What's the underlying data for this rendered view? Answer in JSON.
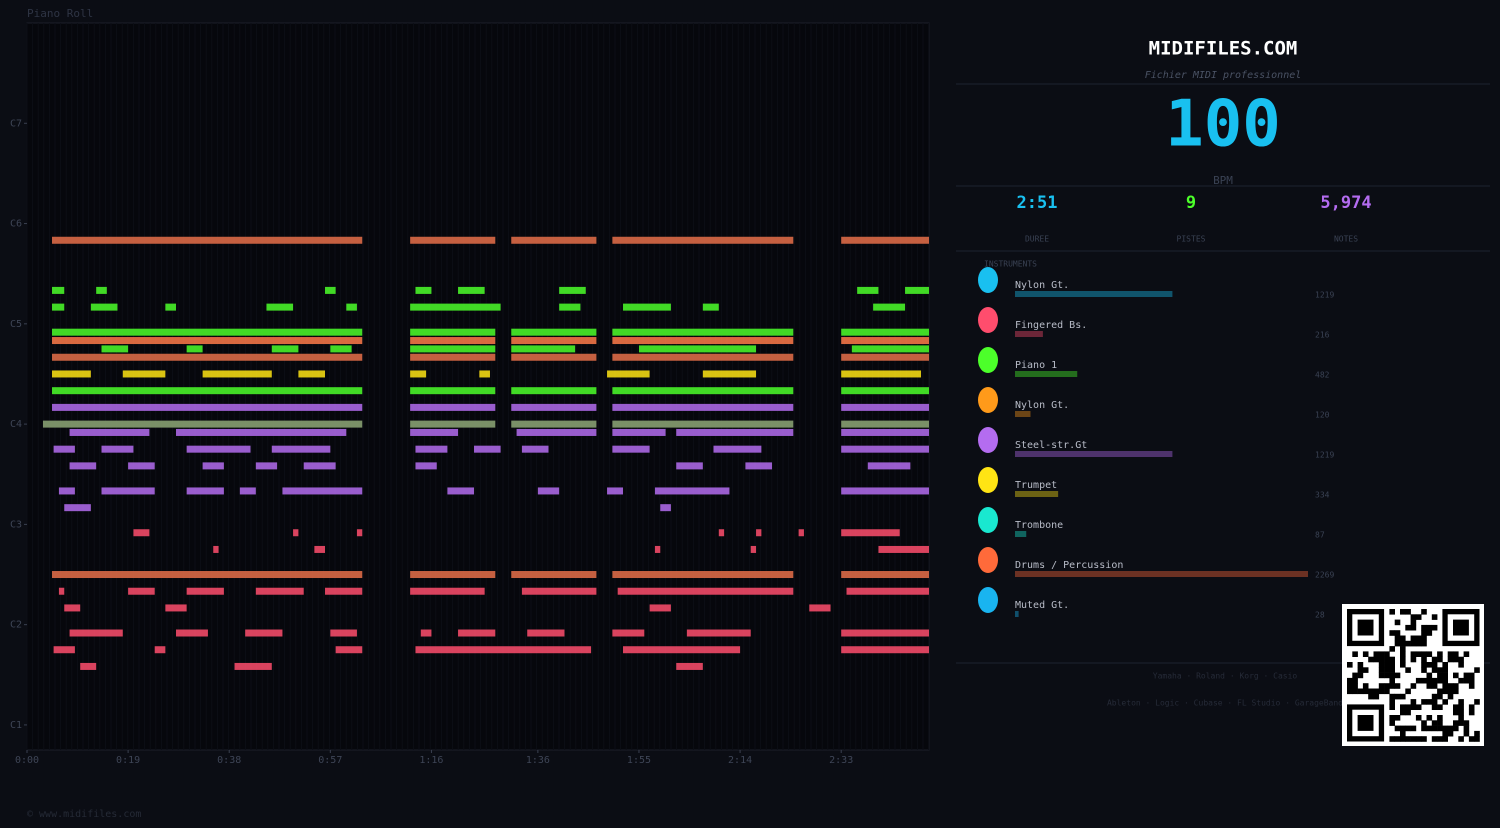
{
  "chart_data": {
    "type": "piano_roll",
    "title": "Piano Roll",
    "xlim": [
      0,
      169.5
    ],
    "ylim": [
      21,
      108
    ],
    "xticks": [
      {
        "value": 0,
        "label": "0:00"
      },
      {
        "value": 19,
        "label": "0:19"
      },
      {
        "value": 38,
        "label": "0:38"
      },
      {
        "value": 57,
        "label": "0:57"
      },
      {
        "value": 76,
        "label": "1:16"
      },
      {
        "value": 96,
        "label": "1:36"
      },
      {
        "value": 115,
        "label": "1:55"
      },
      {
        "value": 134,
        "label": "2:14"
      },
      {
        "value": 153,
        "label": "2:33"
      }
    ],
    "yticks": [
      {
        "value": 24,
        "label": "C1"
      },
      {
        "value": 36,
        "label": "C2"
      },
      {
        "value": 48,
        "label": "C3"
      },
      {
        "value": 60,
        "label": "C4"
      },
      {
        "value": 72,
        "label": "C5"
      },
      {
        "value": 84,
        "label": "C6"
      },
      {
        "value": 96,
        "label": "C7"
      }
    ],
    "series": [
      {
        "pitch": 82,
        "color": "#e8704a",
        "spans": [
          [
            4.7,
            63
          ],
          [
            72,
            88
          ],
          [
            91,
            107
          ],
          [
            110,
            144
          ],
          [
            153,
            169.5
          ]
        ]
      },
      {
        "pitch": 70,
        "color": "#ff7a4a",
        "spans": [
          [
            4.7,
            63
          ],
          [
            72,
            88
          ],
          [
            91,
            107
          ],
          [
            110,
            144
          ],
          [
            153,
            169.5
          ]
        ]
      },
      {
        "pitch": 68,
        "color": "#e8704a",
        "spans": [
          [
            4.7,
            63
          ],
          [
            72,
            88
          ],
          [
            91,
            107
          ],
          [
            110,
            144
          ],
          [
            153,
            169.5
          ]
        ]
      },
      {
        "pitch": 42,
        "color": "#e8704a",
        "spans": [
          [
            4.7,
            63
          ],
          [
            72,
            88
          ],
          [
            91,
            107
          ],
          [
            110,
            144
          ],
          [
            153,
            169.5
          ]
        ]
      },
      {
        "pitch": 76,
        "color": "#4cff2a",
        "spans": [
          [
            4.7,
            7
          ],
          [
            13,
            15
          ],
          [
            56,
            58
          ],
          [
            73,
            76
          ],
          [
            81,
            86
          ],
          [
            100,
            105
          ],
          [
            156,
            160
          ],
          [
            165,
            169.5
          ]
        ]
      },
      {
        "pitch": 74,
        "color": "#4cff2a",
        "spans": [
          [
            4.7,
            7
          ],
          [
            12,
            17
          ],
          [
            26,
            28
          ],
          [
            45,
            50
          ],
          [
            60,
            62
          ],
          [
            72,
            89
          ],
          [
            100,
            104
          ],
          [
            112,
            121
          ],
          [
            127,
            130
          ],
          [
            159,
            165
          ]
        ]
      },
      {
        "pitch": 71,
        "color": "#4cff2a",
        "spans": [
          [
            4.7,
            63
          ],
          [
            72,
            88
          ],
          [
            91,
            107
          ],
          [
            110,
            144
          ],
          [
            153,
            169.5
          ]
        ]
      },
      {
        "pitch": 69,
        "color": "#4cff2a",
        "spans": [
          [
            14,
            19
          ],
          [
            30,
            33
          ],
          [
            46,
            51
          ],
          [
            57,
            61
          ],
          [
            72,
            88
          ],
          [
            91,
            103
          ],
          [
            115,
            137
          ],
          [
            155,
            169.5
          ]
        ]
      },
      {
        "pitch": 66,
        "color": "#ffe414",
        "spans": [
          [
            4.7,
            12
          ],
          [
            18,
            26
          ],
          [
            33,
            46
          ],
          [
            51,
            56
          ],
          [
            72,
            75
          ],
          [
            85,
            87
          ],
          [
            109,
            117
          ],
          [
            127,
            137
          ],
          [
            153,
            168
          ]
        ]
      },
      {
        "pitch": 64,
        "color": "#4cff2a",
        "spans": [
          [
            4.7,
            63
          ],
          [
            72,
            88
          ],
          [
            91,
            107
          ],
          [
            110,
            144
          ],
          [
            153,
            169.5
          ]
        ]
      },
      {
        "pitch": 62,
        "color": "#b46cf0",
        "spans": [
          [
            4.7,
            63
          ],
          [
            72,
            88
          ],
          [
            91,
            107
          ],
          [
            110,
            144
          ],
          [
            153,
            169.5
          ]
        ]
      },
      {
        "pitch": 60,
        "color": "#8fa878",
        "spans": [
          [
            3,
            63
          ],
          [
            72,
            88
          ],
          [
            91,
            107
          ],
          [
            110,
            144
          ],
          [
            153,
            169.5
          ]
        ]
      },
      {
        "pitch": 59,
        "color": "#b46cf0",
        "spans": [
          [
            8,
            23
          ],
          [
            28,
            60
          ],
          [
            72,
            81
          ],
          [
            92,
            107
          ],
          [
            110,
            120
          ],
          [
            122,
            144
          ],
          [
            153,
            169.5
          ]
        ]
      },
      {
        "pitch": 57,
        "color": "#b46cf0",
        "spans": [
          [
            5,
            9
          ],
          [
            14,
            20
          ],
          [
            30,
            42
          ],
          [
            46,
            57
          ],
          [
            73,
            79
          ],
          [
            84,
            89
          ],
          [
            93,
            98
          ],
          [
            110,
            117
          ],
          [
            129,
            138
          ],
          [
            153,
            169.5
          ]
        ]
      },
      {
        "pitch": 55,
        "color": "#b46cf0",
        "spans": [
          [
            8,
            13
          ],
          [
            19,
            24
          ],
          [
            33,
            37
          ],
          [
            43,
            47
          ],
          [
            52,
            58
          ],
          [
            73,
            77
          ],
          [
            122,
            127
          ],
          [
            135,
            140
          ],
          [
            158,
            166
          ]
        ]
      },
      {
        "pitch": 52,
        "color": "#b46cf0",
        "spans": [
          [
            6,
            9
          ],
          [
            14,
            24
          ],
          [
            30,
            37
          ],
          [
            40,
            43
          ],
          [
            48,
            63
          ],
          [
            79,
            84
          ],
          [
            96,
            100
          ],
          [
            109,
            112
          ],
          [
            118,
            132
          ],
          [
            153,
            169.5
          ]
        ]
      },
      {
        "pitch": 50,
        "color": "#b46cf0",
        "spans": [
          [
            7,
            12
          ],
          [
            119,
            121
          ]
        ]
      },
      {
        "pitch": 47,
        "color": "#ff4d6d",
        "spans": [
          [
            20,
            23
          ],
          [
            50,
            51
          ],
          [
            62,
            63
          ],
          [
            130,
            131
          ],
          [
            137,
            138
          ],
          [
            145,
            146
          ],
          [
            153,
            164
          ]
        ]
      },
      {
        "pitch": 45,
        "color": "#ff4d6d",
        "spans": [
          [
            35,
            36
          ],
          [
            54,
            56
          ],
          [
            118,
            119
          ],
          [
            136,
            137
          ],
          [
            160,
            169.5
          ]
        ]
      },
      {
        "pitch": 40,
        "color": "#ff4d6d",
        "spans": [
          [
            6,
            7
          ],
          [
            19,
            24
          ],
          [
            30,
            37
          ],
          [
            43,
            52
          ],
          [
            56,
            63
          ],
          [
            72,
            86
          ],
          [
            93,
            107
          ],
          [
            111,
            144
          ],
          [
            154,
            169.5
          ]
        ]
      },
      {
        "pitch": 38,
        "color": "#ff4d6d",
        "spans": [
          [
            7,
            10
          ],
          [
            26,
            30
          ],
          [
            117,
            121
          ],
          [
            147,
            151
          ]
        ]
      },
      {
        "pitch": 35,
        "color": "#ff4d6d",
        "spans": [
          [
            8,
            18
          ],
          [
            28,
            34
          ],
          [
            41,
            48
          ],
          [
            57,
            62
          ],
          [
            74,
            76
          ],
          [
            81,
            88
          ],
          [
            94,
            101
          ],
          [
            110,
            116
          ],
          [
            124,
            136
          ],
          [
            153,
            169.5
          ]
        ]
      },
      {
        "pitch": 33,
        "color": "#ff4d6d",
        "spans": [
          [
            5,
            9
          ],
          [
            24,
            26
          ],
          [
            58,
            63
          ],
          [
            73,
            106
          ],
          [
            112,
            134
          ],
          [
            153,
            169.5
          ]
        ]
      },
      {
        "pitch": 31,
        "color": "#ff4d6d",
        "spans": [
          [
            10,
            13
          ],
          [
            39,
            46
          ],
          [
            122,
            127
          ]
        ]
      }
    ]
  },
  "sidebar": {
    "title": "MIDIFILES.COM",
    "subtitle": "Fichier MIDI professionnel",
    "bpm": 100,
    "bpm_label": "BPM",
    "stats": [
      {
        "value": "2:51",
        "label": "DUREE",
        "color": "#19c0f0"
      },
      {
        "value": "9",
        "label": "PISTES",
        "color": "#4cff2a"
      },
      {
        "value": "5,974",
        "label": "NOTES",
        "color": "#b46cf0"
      }
    ],
    "instruments_heading": "INSTRUMENTS",
    "instruments": [
      {
        "name": "Nylon Gt.",
        "count": 1219,
        "color": "#19c0f0"
      },
      {
        "name": "Fingered Bs.",
        "count": 216,
        "color": "#ff4d6d"
      },
      {
        "name": "Piano 1",
        "count": 482,
        "color": "#4cff2a"
      },
      {
        "name": "Nylon Gt.",
        "count": 120,
        "color": "#ff9a1a"
      },
      {
        "name": "Steel-str.Gt",
        "count": 1219,
        "color": "#b46cf0"
      },
      {
        "name": "Trumpet",
        "count": 334,
        "color": "#ffe414"
      },
      {
        "name": "Trombone",
        "count": 87,
        "color": "#19e8d0"
      },
      {
        "name": "Drums / Percussion",
        "count": 2269,
        "color": "#ff6a3a"
      },
      {
        "name": "Muted Gt.",
        "count": 28,
        "color": "#19b4f0"
      }
    ],
    "brands": "Yamaha · Roland · Korg · Casio",
    "software": "Ableton · Logic · Cubase · FL Studio · GarageBand"
  },
  "footer": "© www.midifiles.com"
}
